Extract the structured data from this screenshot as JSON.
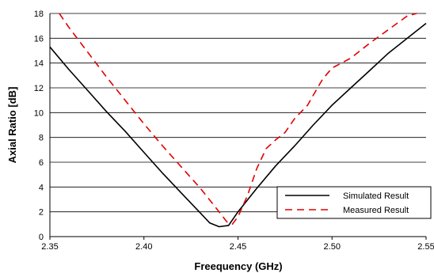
{
  "chart_data": {
    "type": "line",
    "xlabel": "Freequency (GHz)",
    "ylabel": "Axial Ratio [dB]",
    "xlim": [
      2.35,
      2.55
    ],
    "ylim": [
      0,
      18
    ],
    "x_ticks": [
      "2.35",
      "2.40",
      "2.45",
      "2.50",
      "2.55"
    ],
    "y_ticks": [
      "0",
      "2",
      "4",
      "6",
      "8",
      "10",
      "12",
      "14",
      "16",
      "18"
    ],
    "grid": "horizontal",
    "legend_position": "bottom-right",
    "series": [
      {
        "name": "Simulated Result",
        "color": "#000000",
        "style": "solid",
        "points": [
          [
            2.35,
            15.3
          ],
          [
            2.36,
            13.5
          ],
          [
            2.37,
            11.8
          ],
          [
            2.38,
            10.1
          ],
          [
            2.39,
            8.5
          ],
          [
            2.4,
            6.8
          ],
          [
            2.41,
            5.1
          ],
          [
            2.42,
            3.5
          ],
          [
            2.43,
            1.9
          ],
          [
            2.435,
            1.1
          ],
          [
            2.44,
            0.8
          ],
          [
            2.445,
            0.9
          ],
          [
            2.45,
            2.0
          ],
          [
            2.46,
            3.9
          ],
          [
            2.47,
            5.7
          ],
          [
            2.48,
            7.3
          ],
          [
            2.49,
            9.0
          ],
          [
            2.5,
            10.6
          ],
          [
            2.51,
            12.0
          ],
          [
            2.52,
            13.4
          ],
          [
            2.53,
            14.8
          ],
          [
            2.54,
            16.0
          ],
          [
            2.55,
            17.2
          ]
        ]
      },
      {
        "name": "Measured Result",
        "color": "#e00000",
        "style": "dashed",
        "points": [
          [
            2.355,
            18.0
          ],
          [
            2.36,
            16.9
          ],
          [
            2.37,
            14.9
          ],
          [
            2.38,
            12.9
          ],
          [
            2.39,
            11.0
          ],
          [
            2.4,
            9.1
          ],
          [
            2.41,
            7.3
          ],
          [
            2.42,
            5.6
          ],
          [
            2.43,
            3.9
          ],
          [
            2.44,
            2.0
          ],
          [
            2.444,
            1.2
          ],
          [
            2.447,
            1.0
          ],
          [
            2.45,
            1.6
          ],
          [
            2.455,
            3.3
          ],
          [
            2.46,
            5.5
          ],
          [
            2.465,
            7.1
          ],
          [
            2.47,
            7.8
          ],
          [
            2.475,
            8.4
          ],
          [
            2.48,
            9.5
          ],
          [
            2.487,
            10.6
          ],
          [
            2.49,
            11.4
          ],
          [
            2.495,
            12.7
          ],
          [
            2.5,
            13.6
          ],
          [
            2.51,
            14.4
          ],
          [
            2.52,
            15.6
          ],
          [
            2.53,
            16.7
          ],
          [
            2.54,
            17.8
          ],
          [
            2.545,
            18.0
          ]
        ]
      }
    ]
  }
}
